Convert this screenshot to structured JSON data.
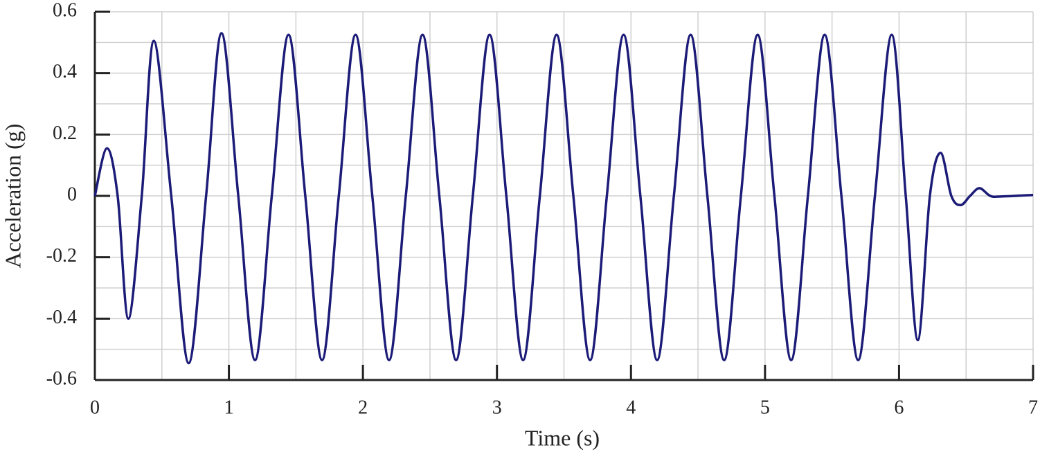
{
  "chart_data": {
    "type": "line",
    "xlabel": "Time (s)",
    "ylabel": "Acceleration (g)",
    "color": "#1c1c78",
    "x": [
      0,
      0.09,
      0.17,
      0.25,
      0.35,
      0.44,
      0.57,
      0.7,
      0.83,
      0.945,
      1.07,
      1.195,
      1.32,
      1.445,
      1.57,
      1.695,
      1.82,
      1.945,
      2.07,
      2.195,
      2.32,
      2.445,
      2.57,
      2.695,
      2.82,
      2.945,
      3.07,
      3.195,
      3.32,
      3.445,
      3.57,
      3.695,
      3.82,
      3.945,
      4.07,
      4.195,
      4.32,
      4.445,
      4.57,
      4.695,
      4.82,
      4.945,
      5.07,
      5.195,
      5.32,
      5.445,
      5.57,
      5.695,
      5.82,
      5.945,
      6.05,
      6.14,
      6.23,
      6.31,
      6.39,
      6.46,
      6.53,
      6.6,
      6.68,
      6.76,
      7
    ],
    "values": [
      0,
      0.155,
      0,
      -0.4,
      0,
      0.505,
      0,
      -0.545,
      0,
      0.53,
      0,
      -0.535,
      0,
      0.525,
      0,
      -0.535,
      0,
      0.525,
      0,
      -0.535,
      0,
      0.525,
      0,
      -0.535,
      0,
      0.525,
      0,
      -0.535,
      0,
      0.525,
      0,
      -0.535,
      0,
      0.525,
      0,
      -0.535,
      0,
      0.525,
      0,
      -0.535,
      0,
      0.525,
      0,
      -0.535,
      0,
      0.525,
      0,
      -0.535,
      0,
      0.525,
      0,
      -0.47,
      0,
      0.14,
      0,
      -0.03,
      0,
      0.025,
      0,
      -0.002,
      0.003
    ],
    "xlim": [
      0,
      7
    ],
    "xticks": [
      0,
      1,
      2,
      3,
      4,
      5,
      6,
      7
    ],
    "xgrid": [
      0.5,
      1,
      1.5,
      2,
      2.5,
      3,
      3.5,
      4,
      4.5,
      5,
      5.5,
      6,
      6.5,
      7
    ],
    "ylim": [
      -0.6,
      0.6
    ],
    "yticks": [
      -0.6,
      -0.4,
      -0.2,
      0,
      0.2,
      0.4,
      0.6
    ],
    "ygrid": [
      -0.5,
      -0.4,
      -0.3,
      -0.2,
      -0.1,
      0,
      0.1,
      0.2,
      0.3,
      0.4,
      0.5,
      0.6
    ],
    "grid": true
  }
}
